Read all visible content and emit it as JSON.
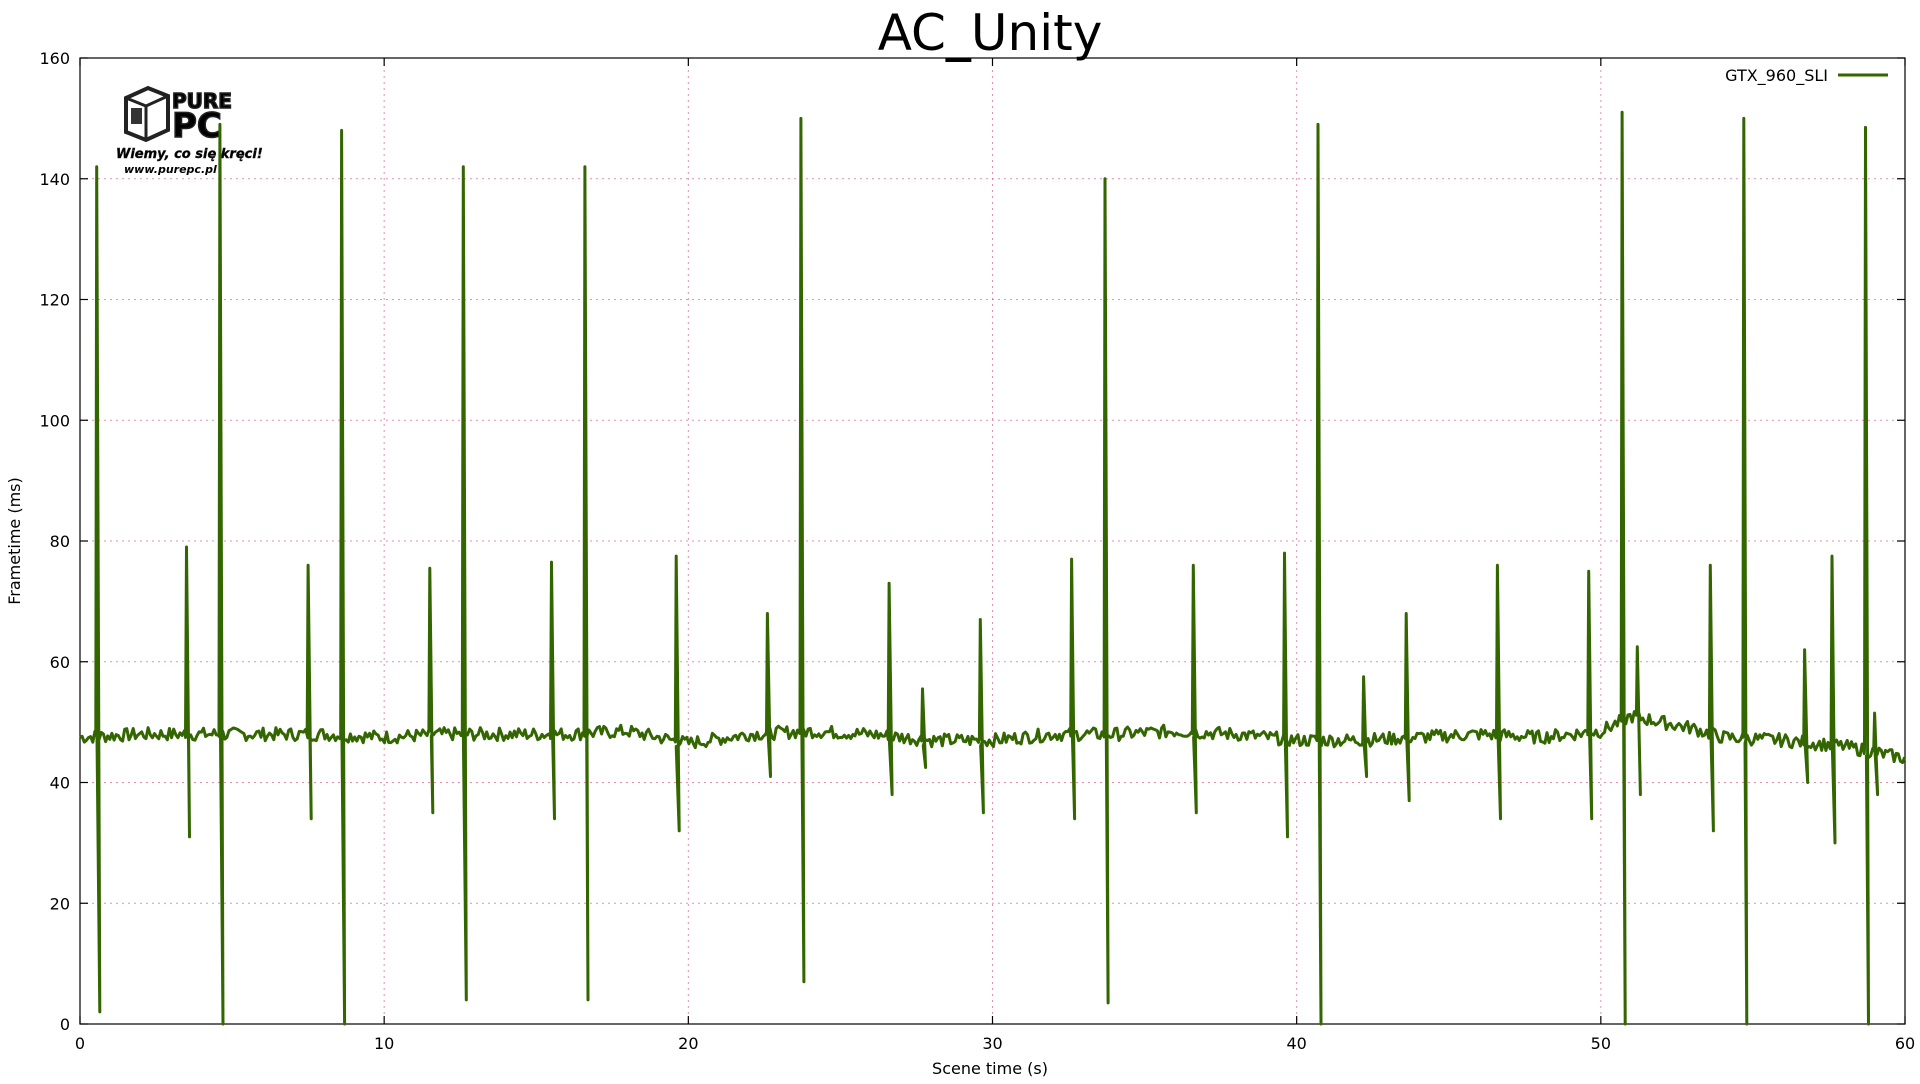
{
  "chart_data": {
    "type": "line",
    "title": "AC_Unity",
    "xlabel": "Scene time (s)",
    "ylabel": "Frametime (ms)",
    "xlim": [
      0,
      60
    ],
    "ylim": [
      0,
      160
    ],
    "xticks": [
      0,
      10,
      20,
      30,
      40,
      50,
      60
    ],
    "yticks": [
      0,
      20,
      40,
      60,
      80,
      100,
      120,
      140,
      160
    ],
    "grid": true,
    "legend_position": "top-right",
    "series": [
      {
        "name": "GTX_960_SLI",
        "color": "#336600",
        "baseline_points": [
          [
            0,
            47.5
          ],
          [
            2,
            48
          ],
          [
            4,
            48
          ],
          [
            6,
            48
          ],
          [
            8,
            48
          ],
          [
            10,
            47.5
          ],
          [
            12,
            48
          ],
          [
            14,
            48
          ],
          [
            16,
            48
          ],
          [
            18,
            48.5
          ],
          [
            20,
            46.5
          ],
          [
            22,
            48
          ],
          [
            24,
            48.5
          ],
          [
            26,
            48
          ],
          [
            28,
            47
          ],
          [
            30,
            47
          ],
          [
            32,
            48
          ],
          [
            34,
            48
          ],
          [
            36,
            48.5
          ],
          [
            38,
            48
          ],
          [
            40,
            47
          ],
          [
            42,
            47
          ],
          [
            44,
            47.5
          ],
          [
            46,
            48
          ],
          [
            48,
            47.5
          ],
          [
            50,
            48.5
          ],
          [
            51,
            51
          ],
          [
            52,
            50
          ],
          [
            53,
            49
          ],
          [
            54,
            47.5
          ],
          [
            56,
            47
          ],
          [
            58,
            46
          ],
          [
            59,
            45
          ],
          [
            60,
            44
          ]
        ],
        "spikes": [
          {
            "x": 0.55,
            "high": 142,
            "low": 2
          },
          {
            "x": 3.5,
            "high": 79,
            "low": 31
          },
          {
            "x": 4.6,
            "high": 149,
            "low": 0
          },
          {
            "x": 7.5,
            "high": 76,
            "low": 34
          },
          {
            "x": 8.6,
            "high": 148,
            "low": 0
          },
          {
            "x": 11.5,
            "high": 75.5,
            "low": 35
          },
          {
            "x": 12.6,
            "high": 142,
            "low": 4
          },
          {
            "x": 15.5,
            "high": 76.5,
            "low": 34
          },
          {
            "x": 16.6,
            "high": 142,
            "low": 4
          },
          {
            "x": 19.6,
            "high": 77.5,
            "low": 32
          },
          {
            "x": 22.6,
            "high": 68,
            "low": 41
          },
          {
            "x": 23.7,
            "high": 150,
            "low": 7
          },
          {
            "x": 26.6,
            "high": 73,
            "low": 38
          },
          {
            "x": 27.7,
            "high": 55.5,
            "low": 42.5
          },
          {
            "x": 29.6,
            "high": 67,
            "low": 35
          },
          {
            "x": 32.6,
            "high": 77,
            "low": 34
          },
          {
            "x": 33.7,
            "high": 140,
            "low": 3.5
          },
          {
            "x": 36.6,
            "high": 76,
            "low": 35
          },
          {
            "x": 39.6,
            "high": 78,
            "low": 31
          },
          {
            "x": 40.7,
            "high": 149,
            "low": 0
          },
          {
            "x": 42.2,
            "high": 57.5,
            "low": 41
          },
          {
            "x": 43.6,
            "high": 68,
            "low": 37
          },
          {
            "x": 46.6,
            "high": 76,
            "low": 34
          },
          {
            "x": 49.6,
            "high": 75,
            "low": 34
          },
          {
            "x": 50.7,
            "high": 151,
            "low": 0
          },
          {
            "x": 51.2,
            "high": 62.5,
            "low": 38
          },
          {
            "x": 53.6,
            "high": 76,
            "low": 32
          },
          {
            "x": 54.7,
            "high": 150,
            "low": 0
          },
          {
            "x": 56.7,
            "high": 62,
            "low": 40
          },
          {
            "x": 57.6,
            "high": 77.5,
            "low": 30
          },
          {
            "x": 58.7,
            "high": 148.5,
            "low": 0
          },
          {
            "x": 59.0,
            "high": 51.5,
            "low": 38
          }
        ]
      }
    ]
  },
  "logo": {
    "brand_top": "PURE",
    "brand_bottom": "PC",
    "tagline": "Wiemy, co się kręci!",
    "url": "www.purepc.pl"
  }
}
